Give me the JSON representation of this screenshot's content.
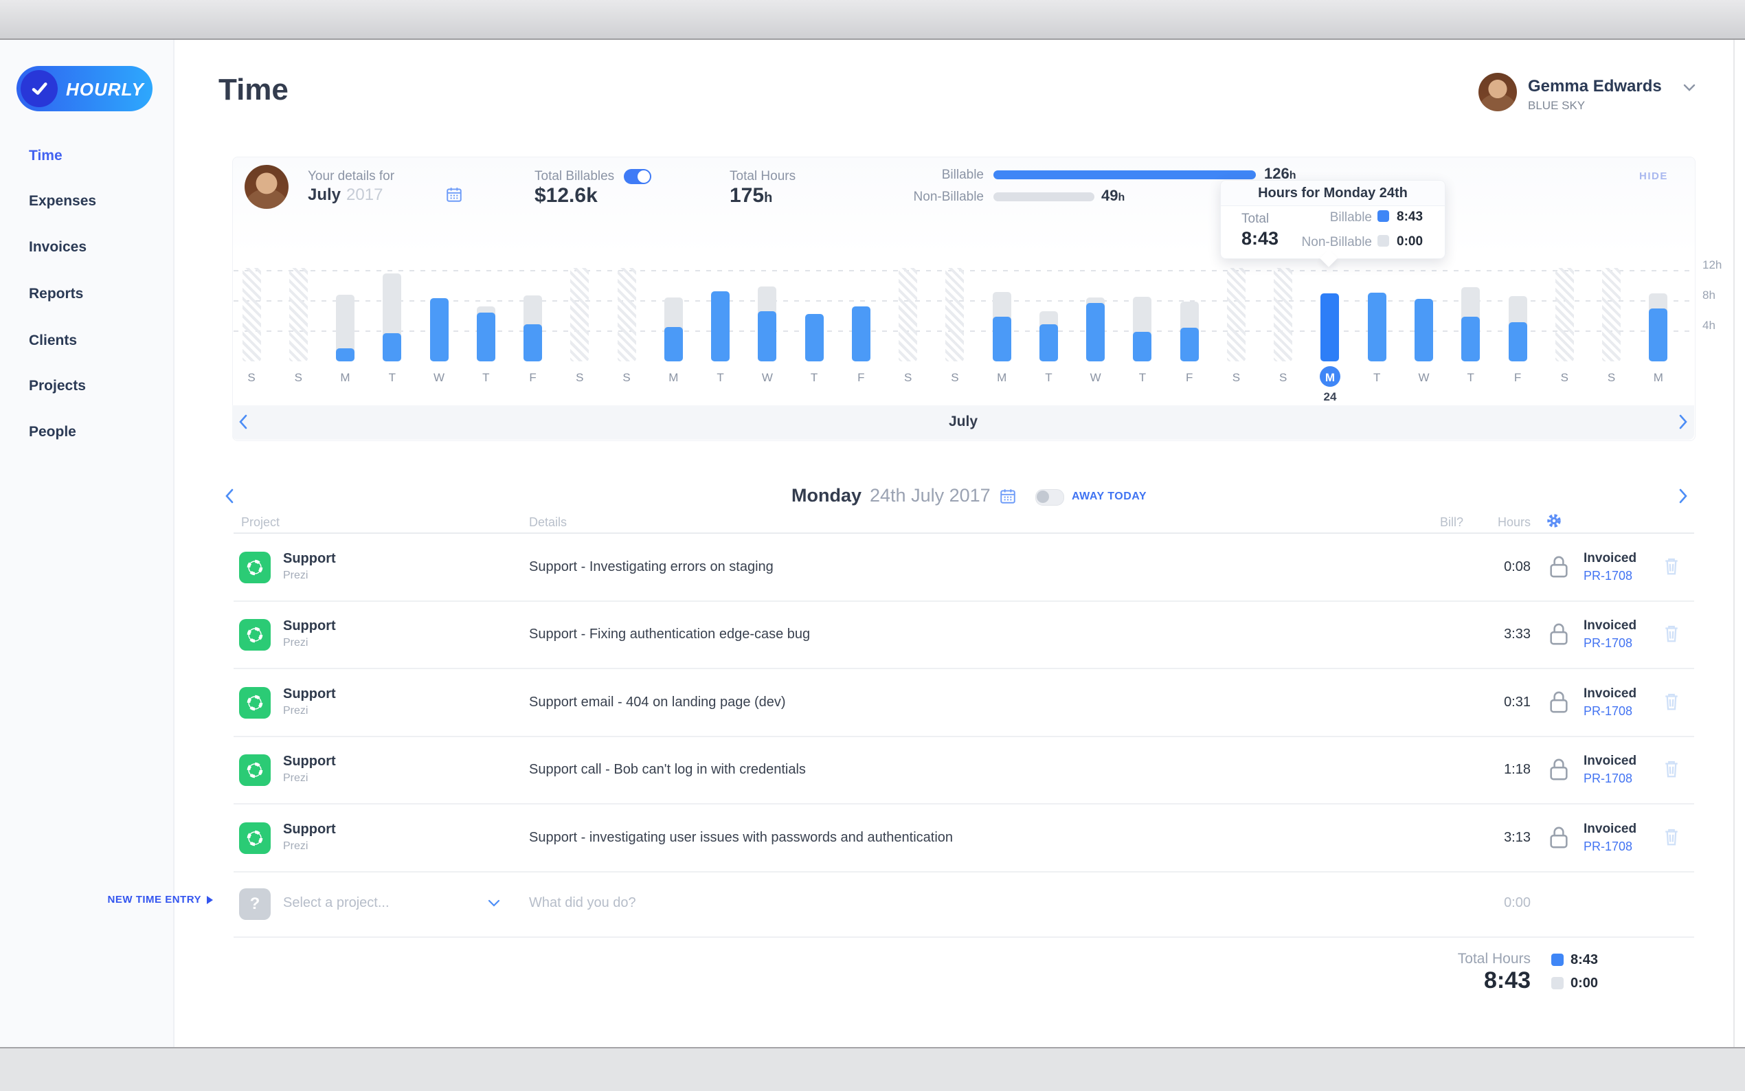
{
  "sidebar": {
    "logo_text": "HOURLY",
    "items": [
      {
        "label": "Time",
        "active": true
      },
      {
        "label": "Expenses"
      },
      {
        "label": "Invoices"
      },
      {
        "label": "Reports"
      },
      {
        "label": "Clients"
      },
      {
        "label": "Projects"
      },
      {
        "label": "People"
      }
    ]
  },
  "header": {
    "title": "Time",
    "user_name": "Gemma Edwards",
    "user_company": "BLUE SKY"
  },
  "summary": {
    "details_label": "Your details for",
    "month": "July",
    "year": "2017",
    "billables_label": "Total Billables",
    "billables_value": "$12.6k",
    "total_hours_label": "Total Hours",
    "total_hours_value": "175",
    "hours_unit": "h",
    "billable_label": "Billable",
    "billable_value": "126",
    "nonbillable_label": "Non-Billable",
    "nonbillable_value": "49",
    "hide_label": "HIDE"
  },
  "tooltip": {
    "title": "Hours for Monday 24th",
    "total_label": "Total",
    "total_value": "8:43",
    "billable_label": "Billable",
    "billable_value": "8:43",
    "nonbillable_label": "Non-Billable",
    "nonbillable_value": "0:00"
  },
  "month_nav": {
    "label": "July"
  },
  "day_nav": {
    "weekday": "Monday",
    "date": "24th July 2017",
    "away_label": "AWAY TODAY"
  },
  "table": {
    "headers": {
      "project": "Project",
      "details": "Details",
      "bill": "Bill?",
      "hours": "Hours"
    },
    "rows": [
      {
        "project": "Support",
        "client": "Prezi",
        "details": "Support - Investigating errors on staging",
        "hours": "0:08",
        "status": "Invoiced",
        "invoice_ref": "PR-1708"
      },
      {
        "project": "Support",
        "client": "Prezi",
        "details": "Support - Fixing authentication edge-case bug",
        "hours": "3:33",
        "status": "Invoiced",
        "invoice_ref": "PR-1708"
      },
      {
        "project": "Support",
        "client": "Prezi",
        "details": "Support email - 404 on landing page (dev)",
        "hours": "0:31",
        "status": "Invoiced",
        "invoice_ref": "PR-1708"
      },
      {
        "project": "Support",
        "client": "Prezi",
        "details": "Support call - Bob can't log in with credentials",
        "hours": "1:18",
        "status": "Invoiced",
        "invoice_ref": "PR-1708"
      },
      {
        "project": "Support",
        "client": "Prezi",
        "details": "Support - investigating user issues with passwords and authentication",
        "hours": "3:13",
        "status": "Invoiced",
        "invoice_ref": "PR-1708"
      }
    ]
  },
  "new_entry": {
    "label": "NEW TIME ENTRY",
    "icon_placeholder": "?",
    "project_placeholder": "Select a project...",
    "details_placeholder": "What did you do?",
    "hours_placeholder": "0:00"
  },
  "totals": {
    "label": "Total Hours",
    "value": "8:43",
    "billable_value": "8:43",
    "nonbillable_value": "0:00"
  },
  "colors": {
    "accent_blue": "#3f7bf6",
    "active_nav_blue": "#4262f0",
    "link_blue": "#4273f2",
    "hide_blue": "#a9b8ef",
    "green_project": "#2bcb75",
    "bar_billable": "#4b9af7",
    "bar_selected": "#2d7ef7",
    "bar_total": "#e3e6ea"
  },
  "chart_data": {
    "type": "bar",
    "title": "Daily hours — July 2017",
    "unit": "hours",
    "ylim": [
      0,
      12
    ],
    "yticks": [
      "12h",
      "8h",
      "4h"
    ],
    "grid": "dashed-horizontal",
    "selected_day": 24,
    "palette": {
      "bar_billable": "#4b9af7",
      "bar_selected": "#2d7ef7",
      "bar_total": "#e3e6ea"
    },
    "days": [
      {
        "day": 1,
        "dow": "S",
        "weekend": true
      },
      {
        "day": 2,
        "dow": "S",
        "weekend": true
      },
      {
        "day": 3,
        "dow": "M",
        "total": 8.6,
        "billable": 1.7
      },
      {
        "day": 4,
        "dow": "T",
        "total": 11.3,
        "billable": 3.6
      },
      {
        "day": 5,
        "dow": "W",
        "total": 8.1,
        "billable": 8.1
      },
      {
        "day": 6,
        "dow": "T",
        "total": 7.1,
        "billable": 6.3
      },
      {
        "day": 7,
        "dow": "F",
        "total": 8.5,
        "billable": 4.8
      },
      {
        "day": 8,
        "dow": "S",
        "weekend": true
      },
      {
        "day": 9,
        "dow": "S",
        "weekend": true
      },
      {
        "day": 10,
        "dow": "M",
        "total": 8.2,
        "billable": 4.4
      },
      {
        "day": 11,
        "dow": "T",
        "total": 9.0,
        "billable": 9.0
      },
      {
        "day": 12,
        "dow": "W",
        "total": 9.6,
        "billable": 6.4
      },
      {
        "day": 13,
        "dow": "T",
        "total": 6.1,
        "billable": 6.1
      },
      {
        "day": 14,
        "dow": "F",
        "total": 7.1,
        "billable": 7.1
      },
      {
        "day": 15,
        "dow": "S",
        "weekend": true
      },
      {
        "day": 16,
        "dow": "S",
        "weekend": true
      },
      {
        "day": 17,
        "dow": "M",
        "total": 8.9,
        "billable": 5.7
      },
      {
        "day": 18,
        "dow": "T",
        "total": 6.4,
        "billable": 4.8
      },
      {
        "day": 19,
        "dow": "W",
        "total": 8.2,
        "billable": 7.5
      },
      {
        "day": 20,
        "dow": "T",
        "total": 8.3,
        "billable": 3.8
      },
      {
        "day": 21,
        "dow": "F",
        "total": 7.7,
        "billable": 4.3
      },
      {
        "day": 22,
        "dow": "S",
        "weekend": true
      },
      {
        "day": 23,
        "dow": "S",
        "weekend": true
      },
      {
        "day": 24,
        "dow": "M",
        "total": 8.72,
        "billable": 8.72
      },
      {
        "day": 25,
        "dow": "T",
        "total": 8.8,
        "billable": 8.8
      },
      {
        "day": 26,
        "dow": "W",
        "total": 8.0,
        "billable": 8.0
      },
      {
        "day": 27,
        "dow": "T",
        "total": 9.5,
        "billable": 5.7
      },
      {
        "day": 28,
        "dow": "F",
        "total": 8.4,
        "billable": 5.0
      },
      {
        "day": 29,
        "dow": "S",
        "weekend": true
      },
      {
        "day": 30,
        "dow": "S",
        "weekend": true
      },
      {
        "day": 31,
        "dow": "M",
        "total": 8.7,
        "billable": 6.8
      }
    ]
  }
}
